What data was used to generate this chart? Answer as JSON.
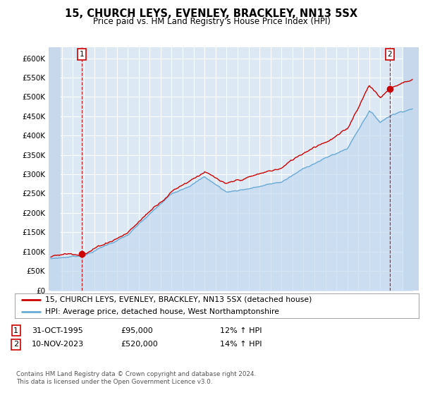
{
  "title": "15, CHURCH LEYS, EVENLEY, BRACKLEY, NN13 5SX",
  "subtitle": "Price paid vs. HM Land Registry's House Price Index (HPI)",
  "ytick_labels": [
    "£0",
    "£50K",
    "£100K",
    "£150K",
    "£200K",
    "£250K",
    "£300K",
    "£350K",
    "£400K",
    "£450K",
    "£500K",
    "£550K",
    "£600K"
  ],
  "yticks": [
    0,
    50000,
    100000,
    150000,
    200000,
    250000,
    300000,
    350000,
    400000,
    450000,
    500000,
    550000,
    600000
  ],
  "hpi_line_color": "#6aaad4",
  "hpi_fill_color": "#c5daf0",
  "price_color": "#cc0000",
  "plot_bg": "#dce9f5",
  "hatch_bg": "#c8d8ec",
  "grid_color": "#ffffff",
  "t1_year": 1995.83,
  "t1_price": 95000,
  "t2_year": 2023.87,
  "t2_price": 520000,
  "legend1": "15, CHURCH LEYS, EVENLEY, BRACKLEY, NN13 5SX (detached house)",
  "legend2": "HPI: Average price, detached house, West Northamptonshire",
  "footer1": "Contains HM Land Registry data © Crown copyright and database right 2024.",
  "footer2": "This data is licensed under the Open Government Licence v3.0.",
  "table_row1": [
    "1",
    "31-OCT-1995",
    "£95,000",
    "12% ↑ HPI"
  ],
  "table_row2": [
    "2",
    "10-NOV-2023",
    "£520,000",
    "14% ↑ HPI"
  ]
}
